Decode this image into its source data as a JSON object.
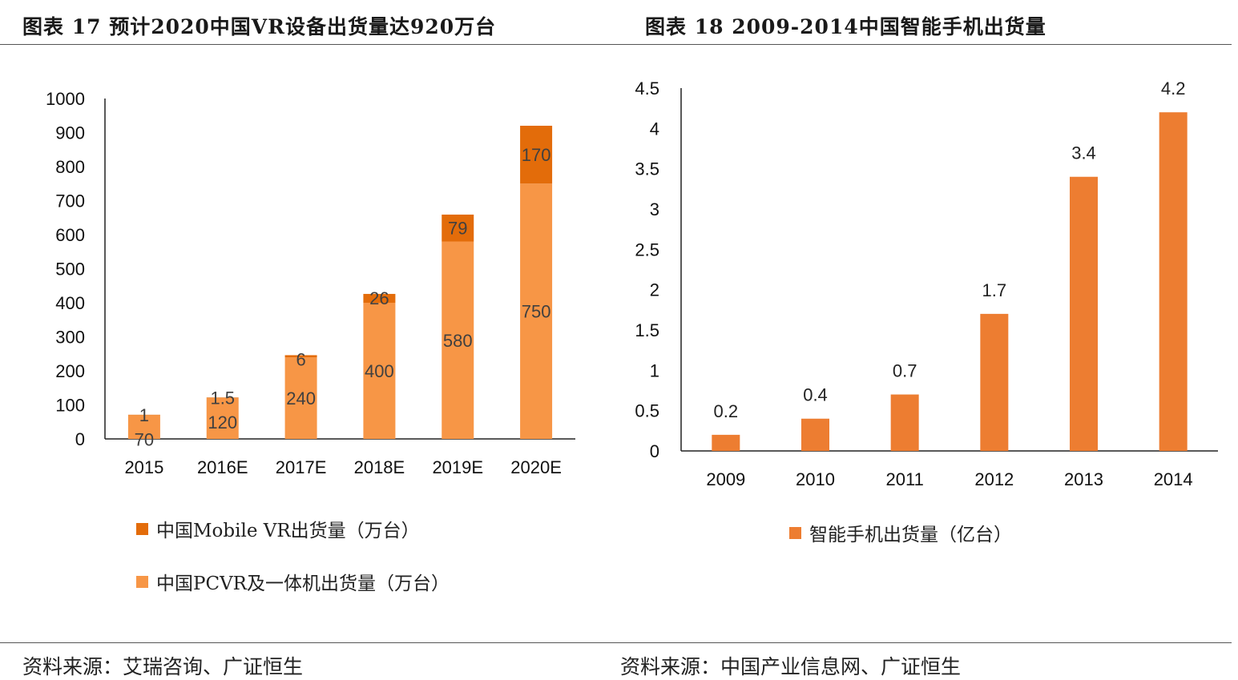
{
  "header": {
    "left_title": "图表 17 预计2020中国VR设备出货量达920万台",
    "right_title": "图表 18 2009-2014中国智能手机出货量"
  },
  "footer": {
    "left_source": "资料来源：艾瑞咨询、广证恒生",
    "right_source": "资料来源：中国产业信息网、广证恒生"
  },
  "colors": {
    "mobile_vr": "#E36C0A",
    "pcvr": "#F79646",
    "smartphone": "#ED7D31",
    "axis": "#222222"
  },
  "chart_data": [
    {
      "type": "bar",
      "stacked": true,
      "title": "预计2020中国VR设备出货量达920万台",
      "categories": [
        "2015",
        "2016E",
        "2017E",
        "2018E",
        "2019E",
        "2020E"
      ],
      "series": [
        {
          "name": "中国PCVR及一体机出货量（万台）",
          "values": [
            70,
            120,
            240,
            400,
            580,
            750
          ],
          "labels": [
            "70",
            "120",
            "240",
            "400",
            "580",
            "750"
          ]
        },
        {
          "name": "中国Mobile VR出货量（万台）",
          "values": [
            1,
            1.5,
            6,
            26,
            79,
            170
          ],
          "labels": [
            "1",
            "1.5",
            "6",
            "26",
            "79",
            "170"
          ]
        }
      ],
      "yticks": [
        "0",
        "100",
        "200",
        "300",
        "400",
        "500",
        "600",
        "700",
        "800",
        "900",
        "1000"
      ],
      "ylim": [
        0,
        1000
      ],
      "legend_position": "bottom-left",
      "legend": [
        "中国Mobile VR出货量（万台）",
        "中国PCVR及一体机出货量（万台）"
      ]
    },
    {
      "type": "bar",
      "title": "2009-2014中国智能手机出货量",
      "categories": [
        "2009",
        "2010",
        "2011",
        "2012",
        "2013",
        "2014"
      ],
      "series": [
        {
          "name": "智能手机出货量（亿台）",
          "values": [
            0.2,
            0.4,
            0.7,
            1.7,
            3.4,
            4.2
          ],
          "labels": [
            "0.2",
            "0.4",
            "0.7",
            "1.7",
            "3.4",
            "4.2"
          ]
        }
      ],
      "yticks": [
        "0",
        "0.5",
        "1",
        "1.5",
        "2",
        "2.5",
        "3",
        "3.5",
        "4",
        "4.5"
      ],
      "ylim": [
        0,
        4.5
      ],
      "legend_position": "bottom",
      "legend": [
        "智能手机出货量（亿台）"
      ]
    }
  ]
}
